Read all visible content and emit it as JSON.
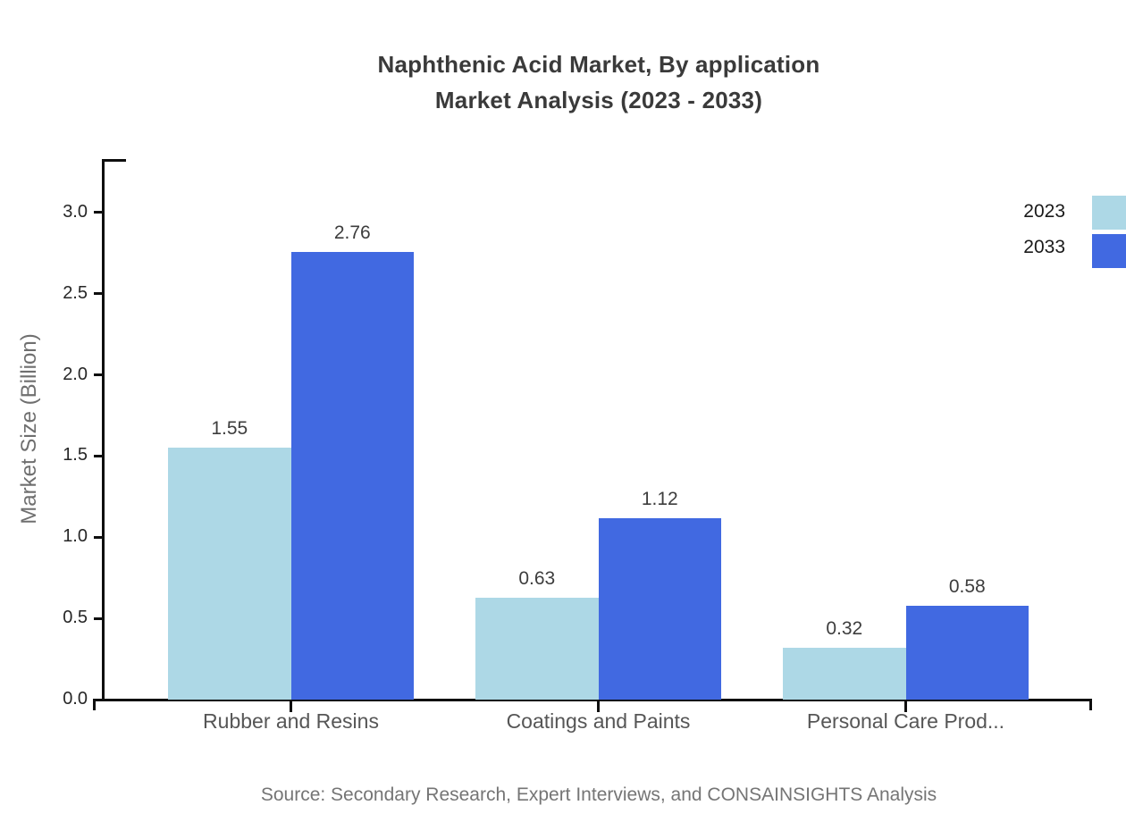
{
  "title": {
    "line1": "Naphthenic Acid Market, By application",
    "line2": "Market Analysis (2023 - 2033)"
  },
  "chart_data": {
    "type": "bar",
    "categories": [
      "Rubber and Resins",
      "Coatings and Paints",
      "Personal Care Prod..."
    ],
    "series": [
      {
        "name": "2023",
        "color": "#ADD8E6",
        "values": [
          1.55,
          0.63,
          0.32
        ],
        "value_labels": [
          "1.55",
          "0.63",
          "0.32"
        ]
      },
      {
        "name": "2033",
        "color": "#4169E1",
        "values": [
          2.76,
          1.12,
          0.58
        ],
        "value_labels": [
          "2.76",
          "1.12",
          "0.58"
        ]
      }
    ],
    "title": "Naphthenic Acid Market, By application Market Analysis (2023 - 2033)",
    "xlabel": "",
    "ylabel": "Market Size (Billion)",
    "ylim": [
      0,
      3.3
    ],
    "ytick_labels": [
      "0.0",
      "0.5",
      "1.0",
      "1.5",
      "2.0",
      "2.5",
      "3.0"
    ],
    "grid": false,
    "legend_position": "top-right"
  },
  "legend": {
    "items": [
      {
        "label": "2023",
        "color": "#ADD8E6"
      },
      {
        "label": "2033",
        "color": "#4169E1"
      }
    ]
  },
  "source": {
    "text": "Source: Secondary Research, Expert Interviews, and CONSAINSIGHTS Analysis"
  },
  "colors": {
    "series_2023": "#ADD8E6",
    "series_2033": "#4169E1",
    "axis": "#0f0f0f",
    "title_text": "#3a3a3a",
    "tick_text": "#262626",
    "category_text": "#565656",
    "value_text": "#3d3d3d",
    "ylabel_text": "#6f6f6f",
    "source_text": "#757575",
    "background": "#ffffff"
  }
}
